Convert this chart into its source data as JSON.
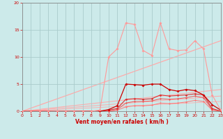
{
  "xlabel": "Vent moyen/en rafales ( km/h )",
  "xlim": [
    0,
    23
  ],
  "ylim": [
    0,
    20
  ],
  "xticks": [
    0,
    1,
    2,
    3,
    4,
    5,
    6,
    7,
    8,
    9,
    10,
    11,
    12,
    13,
    14,
    15,
    16,
    17,
    18,
    19,
    20,
    21,
    22,
    23
  ],
  "yticks": [
    0,
    5,
    10,
    15,
    20
  ],
  "bg_color": "#cceaea",
  "grid_color": "#aacccc",
  "line_pink": {
    "x": [
      0,
      1,
      2,
      3,
      4,
      5,
      6,
      7,
      8,
      9,
      10,
      11,
      12,
      13,
      14,
      15,
      16,
      17,
      18,
      19,
      20,
      21,
      22,
      23
    ],
    "y": [
      0,
      0,
      0,
      0,
      0,
      0,
      0,
      0,
      0,
      0.2,
      10.0,
      11.5,
      16.3,
      16.0,
      11.2,
      10.3,
      16.3,
      11.5,
      11.2,
      11.3,
      13.0,
      11.5,
      3.0,
      0.2
    ],
    "color": "#ff9999",
    "lw": 0.8,
    "marker": "D",
    "ms": 2.0
  },
  "line_dark1": {
    "x": [
      0,
      1,
      2,
      3,
      4,
      5,
      6,
      7,
      8,
      9,
      10,
      11,
      12,
      13,
      14,
      15,
      16,
      17,
      18,
      19,
      20,
      21,
      22,
      23
    ],
    "y": [
      0,
      0,
      0,
      0,
      0,
      0,
      0,
      0,
      0,
      0,
      0.3,
      1.0,
      5.0,
      4.9,
      4.8,
      5.0,
      5.0,
      4.0,
      3.7,
      4.0,
      3.8,
      3.0,
      1.2,
      0.2
    ],
    "color": "#cc0000",
    "lw": 0.9,
    "marker": "D",
    "ms": 2.0
  },
  "line_dark2": {
    "x": [
      0,
      1,
      2,
      3,
      4,
      5,
      6,
      7,
      8,
      9,
      10,
      11,
      12,
      13,
      14,
      15,
      16,
      17,
      18,
      19,
      20,
      21,
      22,
      23
    ],
    "y": [
      0,
      0,
      0,
      0,
      0,
      0,
      0,
      0,
      0,
      0,
      0.2,
      0.5,
      2.2,
      2.3,
      2.2,
      2.3,
      3.0,
      2.8,
      2.9,
      3.0,
      3.2,
      3.0,
      0.5,
      0.0
    ],
    "color": "#dd3333",
    "lw": 0.8,
    "marker": "D",
    "ms": 1.8
  },
  "line_flat1": {
    "x": [
      0,
      1,
      2,
      3,
      4,
      5,
      6,
      7,
      8,
      9,
      10,
      11,
      12,
      13,
      14,
      15,
      16,
      17,
      18,
      19,
      20,
      21,
      22,
      23
    ],
    "y": [
      0,
      0,
      0,
      0,
      0,
      0,
      0,
      0,
      0,
      0,
      0,
      0.3,
      1.5,
      1.8,
      1.8,
      1.9,
      2.3,
      2.2,
      2.3,
      2.5,
      2.8,
      2.5,
      0.3,
      0.0
    ],
    "color": "#ee5555",
    "lw": 0.7,
    "marker": "D",
    "ms": 1.5
  },
  "line_flat2": {
    "x": [
      0,
      1,
      2,
      3,
      4,
      5,
      6,
      7,
      8,
      9,
      10,
      11,
      12,
      13,
      14,
      15,
      16,
      17,
      18,
      19,
      20,
      21,
      22,
      23
    ],
    "y": [
      0,
      0,
      0,
      0,
      0,
      0,
      0,
      0,
      0,
      0,
      0,
      0.2,
      0.8,
      1.0,
      1.0,
      1.1,
      1.5,
      1.4,
      1.5,
      1.7,
      2.0,
      1.8,
      0.2,
      0.0
    ],
    "color": "#ff7777",
    "lw": 0.7,
    "marker": "D",
    "ms": 1.5
  },
  "slope1": {
    "x": [
      0,
      23
    ],
    "y": [
      0,
      13.0
    ],
    "color": "#ffaaaa",
    "lw": 0.9
  },
  "slope2": {
    "x": [
      0,
      23
    ],
    "y": [
      0,
      4.0
    ],
    "color": "#ffaaaa",
    "lw": 0.8
  },
  "slope3": {
    "x": [
      0,
      23
    ],
    "y": [
      0,
      2.8
    ],
    "color": "#ffaaaa",
    "lw": 0.7
  },
  "slope4": {
    "x": [
      0,
      23
    ],
    "y": [
      0,
      1.8
    ],
    "color": "#ffaaaa",
    "lw": 0.6
  }
}
